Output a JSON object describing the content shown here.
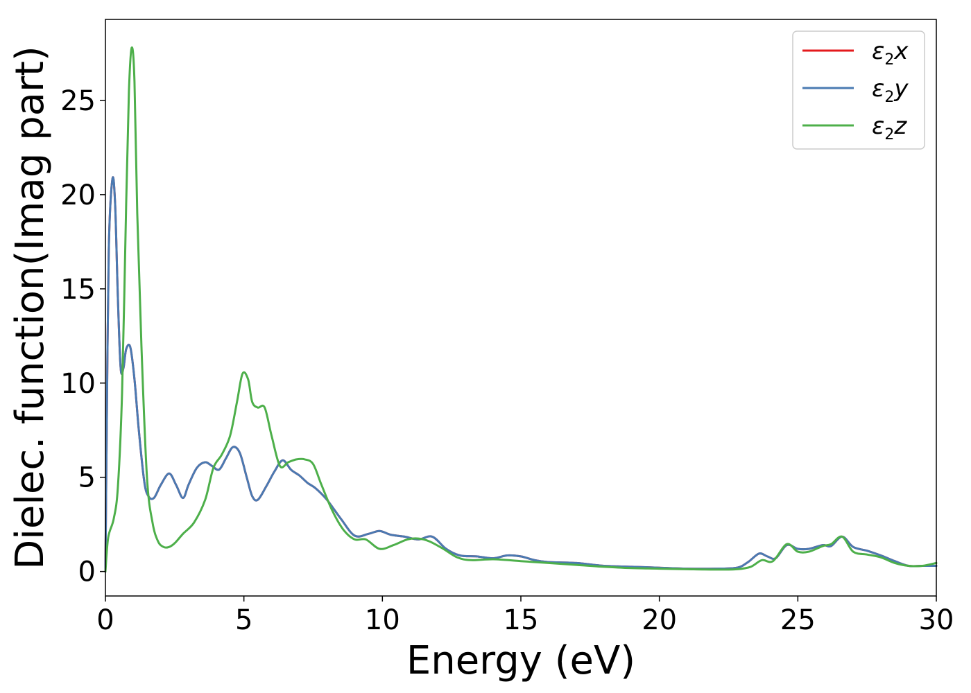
{
  "chart_data": {
    "type": "line",
    "xlabel": "Energy (eV)",
    "ylabel": "Dielec. function(Imag part)",
    "xlim": [
      0,
      30
    ],
    "ylim": [
      -1.3,
      29.3
    ],
    "x_ticks": [
      0,
      5,
      10,
      15,
      20,
      25,
      30
    ],
    "y_ticks": [
      0,
      5,
      10,
      15,
      20,
      25
    ],
    "grid": false,
    "legend_position": "top-right",
    "series": [
      {
        "name_main": "ε",
        "name_sub": "2",
        "name_var": "x",
        "color": "#e41a1c",
        "x": [
          0,
          0.05,
          0.12,
          0.25,
          0.35,
          0.45,
          0.55,
          0.65,
          0.75,
          0.9,
          1.05,
          1.2,
          1.4,
          1.55,
          1.75,
          2.0,
          2.3,
          2.55,
          2.8,
          3.0,
          3.3,
          3.6,
          3.85,
          4.1,
          4.35,
          4.6,
          4.85,
          5.1,
          5.3,
          5.5,
          5.8,
          6.1,
          6.4,
          6.7,
          7.0,
          7.3,
          7.6,
          8.0,
          8.5,
          9.0,
          9.5,
          9.9,
          10.3,
          10.8,
          11.3,
          11.8,
          12.3,
          12.8,
          13.4,
          14.0,
          14.5,
          15.0,
          15.5,
          16.0,
          17.0,
          18.0,
          19.0,
          20.0,
          21.0,
          22.0,
          22.8,
          23.2,
          23.6,
          23.9,
          24.2,
          24.6,
          25.0,
          25.4,
          25.9,
          26.2,
          26.6,
          27.0,
          27.5,
          28.0,
          28.5,
          29.0,
          29.5,
          30.0
        ],
        "y": [
          0,
          8,
          17,
          20.8,
          19.5,
          14.5,
          10.8,
          10.8,
          11.8,
          11.9,
          10.2,
          7.6,
          4.8,
          4.0,
          3.9,
          4.6,
          5.2,
          4.6,
          3.9,
          4.6,
          5.5,
          5.8,
          5.6,
          5.4,
          6.0,
          6.6,
          6.3,
          5.0,
          4.0,
          3.8,
          4.5,
          5.3,
          5.9,
          5.4,
          5.1,
          4.7,
          4.4,
          3.8,
          2.8,
          1.9,
          2.0,
          2.15,
          1.95,
          1.85,
          1.7,
          1.85,
          1.2,
          0.85,
          0.8,
          0.7,
          0.85,
          0.8,
          0.6,
          0.5,
          0.45,
          0.3,
          0.25,
          0.2,
          0.15,
          0.15,
          0.2,
          0.5,
          0.95,
          0.8,
          0.7,
          1.4,
          1.2,
          1.2,
          1.4,
          1.35,
          1.85,
          1.3,
          1.1,
          0.85,
          0.55,
          0.3,
          0.3,
          0.3
        ]
      },
      {
        "name_main": "ε",
        "name_sub": "2",
        "name_var": "y",
        "color": "#4a7ab2",
        "x": [
          0,
          0.05,
          0.12,
          0.25,
          0.35,
          0.45,
          0.55,
          0.65,
          0.75,
          0.9,
          1.05,
          1.2,
          1.4,
          1.55,
          1.75,
          2.0,
          2.3,
          2.55,
          2.8,
          3.0,
          3.3,
          3.6,
          3.85,
          4.1,
          4.35,
          4.6,
          4.85,
          5.1,
          5.3,
          5.5,
          5.8,
          6.1,
          6.4,
          6.7,
          7.0,
          7.3,
          7.6,
          8.0,
          8.5,
          9.0,
          9.5,
          9.9,
          10.3,
          10.8,
          11.3,
          11.8,
          12.3,
          12.8,
          13.4,
          14.0,
          14.5,
          15.0,
          15.5,
          16.0,
          17.0,
          18.0,
          19.0,
          20.0,
          21.0,
          22.0,
          22.8,
          23.2,
          23.6,
          23.9,
          24.2,
          24.6,
          25.0,
          25.4,
          25.9,
          26.2,
          26.6,
          27.0,
          27.5,
          28.0,
          28.5,
          29.0,
          29.5,
          30.0
        ],
        "y": [
          0,
          8,
          17,
          20.8,
          19.5,
          14.5,
          10.8,
          10.8,
          11.8,
          11.9,
          10.2,
          7.6,
          4.8,
          4.0,
          3.9,
          4.6,
          5.2,
          4.6,
          3.9,
          4.6,
          5.5,
          5.8,
          5.6,
          5.4,
          6.0,
          6.6,
          6.3,
          5.0,
          4.0,
          3.8,
          4.5,
          5.3,
          5.9,
          5.4,
          5.1,
          4.7,
          4.4,
          3.8,
          2.8,
          1.9,
          2.0,
          2.15,
          1.95,
          1.85,
          1.7,
          1.85,
          1.2,
          0.85,
          0.8,
          0.7,
          0.85,
          0.8,
          0.6,
          0.5,
          0.45,
          0.3,
          0.25,
          0.2,
          0.15,
          0.15,
          0.2,
          0.5,
          0.95,
          0.8,
          0.7,
          1.4,
          1.2,
          1.2,
          1.4,
          1.35,
          1.85,
          1.3,
          1.1,
          0.85,
          0.55,
          0.3,
          0.3,
          0.3
        ]
      },
      {
        "name_main": "ε",
        "name_sub": "2",
        "name_var": "z",
        "color": "#4daf4a",
        "x": [
          0,
          0.1,
          0.3,
          0.45,
          0.6,
          0.75,
          0.85,
          0.95,
          1.05,
          1.15,
          1.3,
          1.5,
          1.7,
          1.9,
          2.1,
          2.3,
          2.5,
          2.8,
          3.2,
          3.6,
          3.9,
          4.2,
          4.5,
          4.75,
          4.95,
          5.15,
          5.3,
          5.5,
          5.75,
          6.0,
          6.3,
          6.6,
          6.9,
          7.2,
          7.5,
          7.8,
          8.2,
          8.6,
          9.0,
          9.4,
          9.9,
          10.4,
          10.9,
          11.3,
          11.7,
          12.2,
          12.7,
          13.2,
          14.0,
          15.0,
          16.0,
          17.0,
          18.0,
          19.0,
          20.0,
          21.0,
          22.0,
          22.8,
          23.3,
          23.7,
          24.1,
          24.6,
          25.0,
          25.4,
          25.9,
          26.2,
          26.6,
          27.0,
          27.5,
          28.0,
          28.5,
          29.0,
          29.5,
          30.0
        ],
        "y": [
          0,
          1.8,
          2.8,
          4.5,
          9.5,
          19.5,
          25.5,
          27.8,
          26.0,
          19.0,
          12.0,
          5.0,
          2.6,
          1.6,
          1.3,
          1.3,
          1.5,
          2.0,
          2.6,
          3.8,
          5.5,
          6.2,
          7.2,
          9.0,
          10.5,
          10.2,
          9.0,
          8.7,
          8.7,
          7.2,
          5.6,
          5.8,
          5.95,
          5.95,
          5.7,
          4.6,
          3.2,
          2.2,
          1.7,
          1.7,
          1.2,
          1.4,
          1.7,
          1.75,
          1.6,
          1.2,
          0.75,
          0.6,
          0.65,
          0.55,
          0.45,
          0.35,
          0.25,
          0.18,
          0.15,
          0.12,
          0.1,
          0.12,
          0.25,
          0.6,
          0.55,
          1.45,
          1.05,
          1.05,
          1.35,
          1.45,
          1.85,
          1.05,
          0.9,
          0.75,
          0.45,
          0.3,
          0.3,
          0.45
        ]
      }
    ]
  }
}
